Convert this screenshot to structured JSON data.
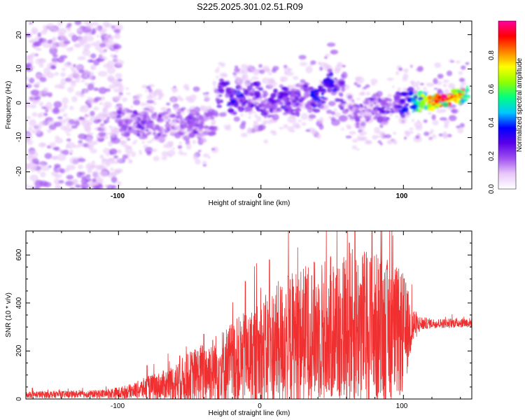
{
  "title": "S225.2025.301.02.51.R09",
  "chart_data": [
    {
      "type": "heatmap",
      "xlabel": "Height of straight line (km)",
      "ylabel": "Frequency (Hz)",
      "xlim": [
        -165,
        148
      ],
      "ylim": [
        -25,
        24
      ],
      "xticks": [
        -100,
        0,
        100
      ],
      "yticks": [
        -20,
        -10,
        0,
        10,
        20
      ],
      "colorbar": {
        "label": "Normalized spectral amplitude",
        "range": [
          0,
          1
        ],
        "ticks": [
          "0.0",
          "0.2",
          "0.4",
          "0.6",
          "0.8"
        ],
        "tick_values": [
          0.0,
          0.2,
          0.4,
          0.6,
          0.8
        ],
        "colors": [
          "#ffffff",
          "#e8c8f8",
          "#a050f0",
          "#5a00e8",
          "#0000ff",
          "#00c8ff",
          "#00ff80",
          "#90ff00",
          "#ffff00",
          "#ff8000",
          "#ff0000",
          "#ff00a0"
        ]
      },
      "ridge": {
        "x": [
          -100,
          -92,
          -85,
          -78,
          -70,
          -62,
          -55,
          -48,
          -40,
          -33,
          -28,
          -24,
          -20,
          -15,
          -10,
          -5,
          0,
          5,
          10,
          15,
          20,
          25,
          30,
          35,
          40,
          44,
          48,
          52,
          56,
          60,
          65,
          70,
          75,
          80,
          85,
          90,
          95,
          100,
          105,
          110,
          115,
          120,
          125,
          130,
          135,
          140,
          145
        ],
        "y": [
          -5,
          -6,
          -6,
          -5,
          -7,
          -6,
          -5,
          -6,
          -8,
          -5,
          4,
          4,
          0,
          2,
          0,
          3,
          1,
          -1,
          0,
          2,
          1,
          0,
          3,
          2,
          1,
          3,
          7,
          5,
          3,
          -1,
          -3,
          -4,
          -2,
          -1,
          -3,
          -2,
          -1,
          0,
          1,
          0,
          1,
          0,
          1,
          1,
          2,
          2,
          2
        ],
        "amp": [
          0.25,
          0.2,
          0.22,
          0.2,
          0.2,
          0.18,
          0.2,
          0.22,
          0.2,
          0.15,
          0.3,
          0.35,
          0.28,
          0.3,
          0.25,
          0.25,
          0.22,
          0.22,
          0.25,
          0.3,
          0.25,
          0.2,
          0.25,
          0.3,
          0.35,
          0.3,
          0.35,
          0.3,
          0.25,
          0.2,
          0.2,
          0.22,
          0.2,
          0.22,
          0.25,
          0.25,
          0.3,
          0.3,
          0.4,
          0.55,
          0.7,
          0.85,
          0.9,
          0.95,
          0.9,
          0.8,
          0.5
        ]
      },
      "noise_region_x": [
        -165,
        -98
      ]
    },
    {
      "type": "line",
      "xlabel": "Height of straight line (km)",
      "ylabel": "SNR (10 * v/v)",
      "xlim": [
        -165,
        148
      ],
      "ylim": [
        0,
        700
      ],
      "xticks": [
        -100,
        0,
        100
      ],
      "yticks": [
        0,
        200,
        400,
        600
      ],
      "series_color": "#f03030",
      "envelope": {
        "x": [
          -165,
          -120,
          -100,
          -90,
          -80,
          -70,
          -60,
          -50,
          -40,
          -30,
          -20,
          -10,
          0,
          10,
          20,
          30,
          40,
          50,
          60,
          70,
          80,
          90,
          100,
          105,
          110,
          115,
          120,
          130,
          140,
          148
        ],
        "baseline": [
          18,
          20,
          25,
          35,
          45,
          55,
          70,
          90,
          110,
          130,
          150,
          165,
          185,
          220,
          250,
          270,
          285,
          290,
          300,
          300,
          290,
          280,
          270,
          300,
          310,
          315,
          315,
          315,
          318,
          318
        ],
        "spread": [
          15,
          15,
          25,
          30,
          50,
          60,
          80,
          110,
          130,
          150,
          180,
          200,
          230,
          260,
          280,
          290,
          300,
          310,
          330,
          330,
          330,
          300,
          260,
          120,
          40,
          25,
          20,
          20,
          20,
          20
        ],
        "peaks": [
          [
            -80,
            140
          ],
          [
            -57,
            180
          ],
          [
            -40,
            270
          ],
          [
            -11,
            490
          ],
          [
            6,
            580
          ],
          [
            32,
            500
          ],
          [
            62,
            650
          ],
          [
            66,
            700
          ],
          [
            78,
            700
          ],
          [
            88,
            540
          ]
        ]
      }
    }
  ]
}
